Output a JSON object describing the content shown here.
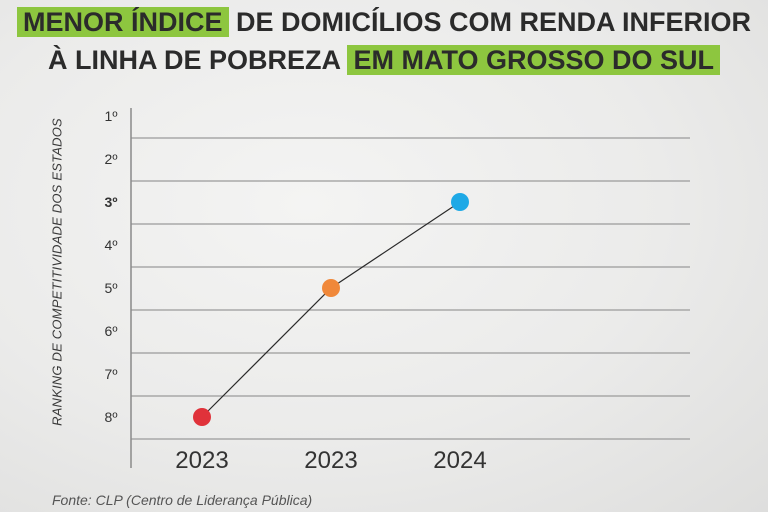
{
  "title": {
    "line1_highlight": "MENOR ÍNDICE",
    "line1_rest": " DE DOMICÍLIOS COM RENDA INFERIOR",
    "line2_rest": "À LINHA DE POBREZA ",
    "line2_highlight": "EM MATO GROSSO DO SUL"
  },
  "source": "Fonte: CLP (Centro de Liderança Pública)",
  "colors": {
    "highlight": "#8dc63f",
    "grid": "#9a9a9a",
    "line": "#2a2a2a",
    "text": "#2b2b2b"
  },
  "chart_data": {
    "type": "line",
    "title": "MENOR ÍNDICE DE DOMICÍLIOS COM RENDA INFERIOR À LINHA DE POBREZA EM MATO GROSSO DO SUL",
    "xlabel": "",
    "ylabel": "RANKING DE COMPETITIVIDADE DOS ESTADOS",
    "y_ticks": [
      "1º",
      "2º",
      "3º",
      "4º",
      "5º",
      "6º",
      "7º",
      "8º"
    ],
    "y_values_ticks": [
      1,
      2,
      3,
      4,
      5,
      6,
      7,
      8
    ],
    "y_inverted": true,
    "ylim": [
      1,
      8
    ],
    "grid": true,
    "emphasized_tick": "3º",
    "points": [
      {
        "x": "2023",
        "y": 8,
        "color": "#e0323a"
      },
      {
        "x": "2023",
        "y": 5,
        "color": "#f0883a"
      },
      {
        "x": "2024",
        "y": 3,
        "color": "#1ea9e6"
      }
    ]
  }
}
